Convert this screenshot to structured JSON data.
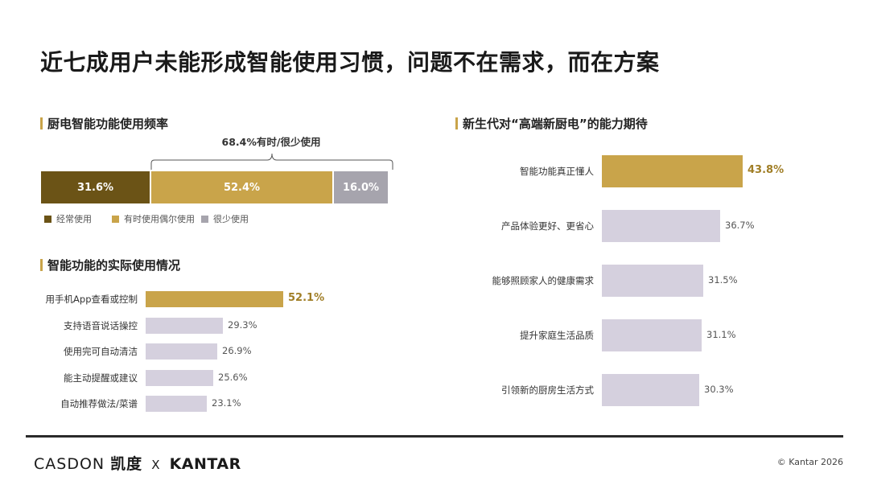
{
  "title": "近七成用户未能形成智能使用习惯，问题不在需求，而在方案",
  "colors": {
    "dark_gold": "#6b5316",
    "gold": "#c9a44a",
    "gray": "#a6a4ad",
    "light_purple": "#d5d0de",
    "highlight_text": "#a07e26",
    "section_mark": "#c9a44a"
  },
  "chart_data": [
    {
      "type": "bar",
      "orientation": "horizontal-stacked",
      "title": "厨电智能功能使用频率",
      "annotation": "68.4%有时/很少使用",
      "series": [
        {
          "name": "经常使用",
          "value": 31.6,
          "label": "31.6%",
          "color": "#6b5316"
        },
        {
          "name": "有时使用偶尔使用",
          "value": 52.4,
          "label": "52.4%",
          "color": "#c9a44a"
        },
        {
          "name": "很少使用",
          "value": 16.0,
          "label": "16.0%",
          "color": "#a6a4ad"
        }
      ],
      "legend_position": "bottom-left"
    },
    {
      "type": "bar",
      "orientation": "horizontal",
      "title": "智能功能的实际使用情况",
      "categories": [
        "用手机App查看或控制",
        "支持语音说话操控",
        "使用完可自动清洁",
        "能主动提醒或建议",
        "自动推荐做法/菜谱"
      ],
      "values": [
        52.1,
        29.3,
        26.9,
        25.6,
        23.1
      ],
      "labels": [
        "52.1%",
        "29.3%",
        "26.9%",
        "25.6%",
        "23.1%"
      ],
      "highlight_index": 0,
      "grid": false
    },
    {
      "type": "bar",
      "orientation": "horizontal",
      "title": "新生代对“高端新厨电”的能力期待",
      "categories": [
        "智能功能真正懂人",
        "产品体验更好、更省心",
        "能够照顾家人的健康需求",
        "提升家庭生活品质",
        "引领新的厨房生活方式"
      ],
      "values": [
        43.8,
        36.7,
        31.5,
        31.1,
        30.3
      ],
      "labels": [
        "43.8%",
        "36.7%",
        "31.5%",
        "31.1%",
        "30.3%"
      ],
      "highlight_index": 0,
      "grid": false
    }
  ],
  "footer": {
    "brand_casdon": "CASDON",
    "brand_cn": "凯度",
    "brand_x": "X",
    "brand_kantar": "KANTAR",
    "copyright": "© Kantar 2026"
  }
}
